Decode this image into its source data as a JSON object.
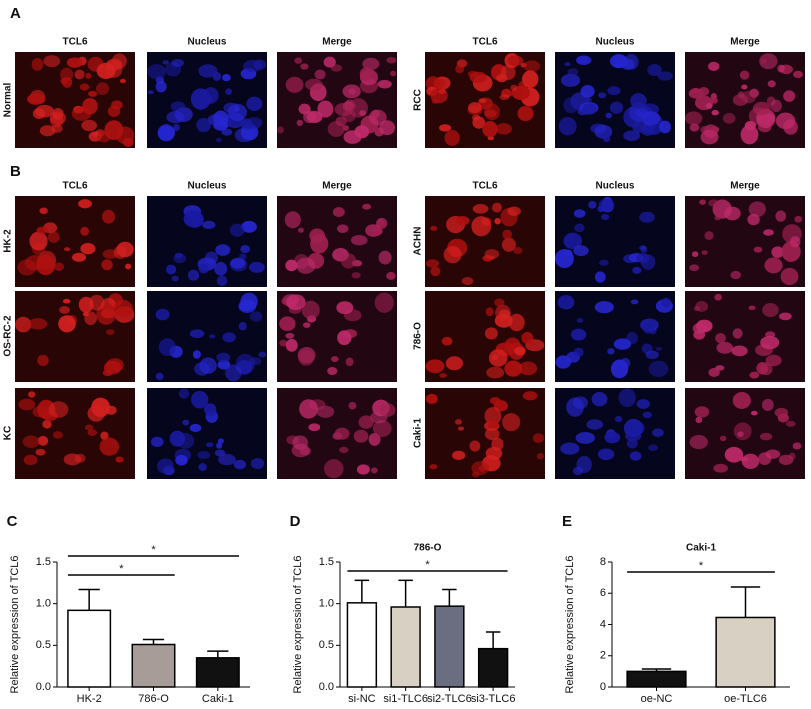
{
  "panel_a": {
    "label": "A",
    "groups": [
      {
        "row_label": "Normal",
        "columns": [
          "TCL6",
          "Nucleus",
          "Merge"
        ]
      },
      {
        "row_label": "RCC",
        "columns": [
          "TCL6",
          "Nucleus",
          "Merge"
        ]
      }
    ]
  },
  "panel_b": {
    "label": "B",
    "groups": [
      {
        "columns": [
          "TCL6",
          "Nucleus",
          "Merge"
        ],
        "rows": [
          "HK-2",
          "OS-RC-2",
          "KC"
        ]
      },
      {
        "columns": [
          "TCL6",
          "Nucleus",
          "Merge"
        ],
        "rows": [
          "ACHN",
          "786-O",
          "Caki-1"
        ]
      }
    ]
  },
  "charts": [
    {
      "label": "C",
      "type": "bar",
      "y_label": "Relative expression of TCL6",
      "categories": [
        "HK-2",
        "786-O",
        "Caki-1"
      ],
      "values": [
        0.92,
        0.51,
        0.35
      ],
      "errors": [
        0.25,
        0.06,
        0.08
      ],
      "colors": [
        "#ffffff",
        "#a89c98",
        "#111111"
      ],
      "ylim": [
        0,
        1.5
      ],
      "yticks": [
        {
          "value": 0,
          "label": "0.0"
        },
        {
          "value": 0.5,
          "label": "0.5"
        },
        {
          "value": 1,
          "label": "1.0"
        },
        {
          "value": 1.5,
          "label": "1.5"
        }
      ],
      "significance": [
        {
          "span": [
            0,
            2
          ],
          "label": "*"
        },
        {
          "span": [
            0,
            1
          ],
          "label": "*"
        }
      ]
    },
    {
      "label": "D",
      "type": "bar",
      "title": "786-O",
      "y_label": "Relative expression of TCL6",
      "categories": [
        "si-NC",
        "si1-TLC6",
        "si2-TLC6",
        "si3-TLC6"
      ],
      "values": [
        1.01,
        0.96,
        0.97,
        0.46
      ],
      "errors": [
        0.27,
        0.32,
        0.2,
        0.2
      ],
      "colors": [
        "#ffffff",
        "#d9d0c4",
        "#6b6e80",
        "#111111"
      ],
      "ylim": [
        0,
        1.5
      ],
      "yticks": [
        {
          "value": 0,
          "label": "0.0"
        },
        {
          "value": 0.5,
          "label": "0.5"
        },
        {
          "value": 1,
          "label": "1.0"
        },
        {
          "value": 1.5,
          "label": "1.5"
        }
      ],
      "significance": [
        {
          "span": [
            0,
            3
          ],
          "label": "*"
        }
      ]
    },
    {
      "label": "E",
      "type": "bar",
      "title": "Caki-1",
      "y_label": "Relative expression of TCL6",
      "categories": [
        "oe-NC",
        "oe-TLC6"
      ],
      "values": [
        1.0,
        4.45
      ],
      "errors": [
        0.15,
        1.95
      ],
      "colors": [
        "#111111",
        "#d9d0c4"
      ],
      "ylim": [
        0,
        8
      ],
      "yticks": [
        0,
        2,
        4,
        6,
        8
      ],
      "significance": [
        {
          "span": [
            0,
            1
          ],
          "label": "*"
        }
      ]
    }
  ]
}
